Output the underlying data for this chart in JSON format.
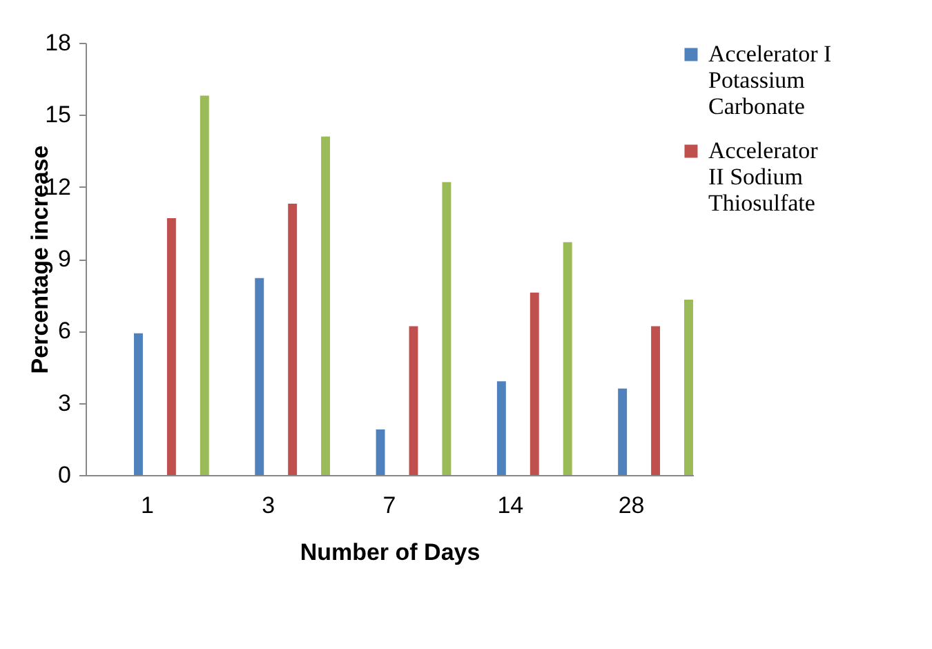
{
  "chart_data": {
    "type": "bar",
    "xlabel": "Number of Days",
    "ylabel": "Percentage increase",
    "categories": [
      "1",
      "3",
      "7",
      "14",
      "28"
    ],
    "series": [
      {
        "name": "Accelerator I Potassium Carbonate",
        "color": "#4f81bd",
        "values": [
          5.9,
          8.2,
          1.9,
          3.9,
          3.6
        ]
      },
      {
        "name": "Accelerator II Sodium Thiosulfate",
        "color": "#c0504d",
        "values": [
          10.7,
          11.3,
          6.2,
          7.6,
          6.2
        ]
      },
      {
        "color": "#9bbb59",
        "values": [
          15.8,
          14.1,
          12.2,
          9.7,
          7.3
        ]
      }
    ],
    "ylim": [
      0,
      18
    ],
    "yticks": [
      0,
      3,
      6,
      9,
      12,
      15,
      18
    ],
    "grid": false,
    "legend": "right"
  }
}
